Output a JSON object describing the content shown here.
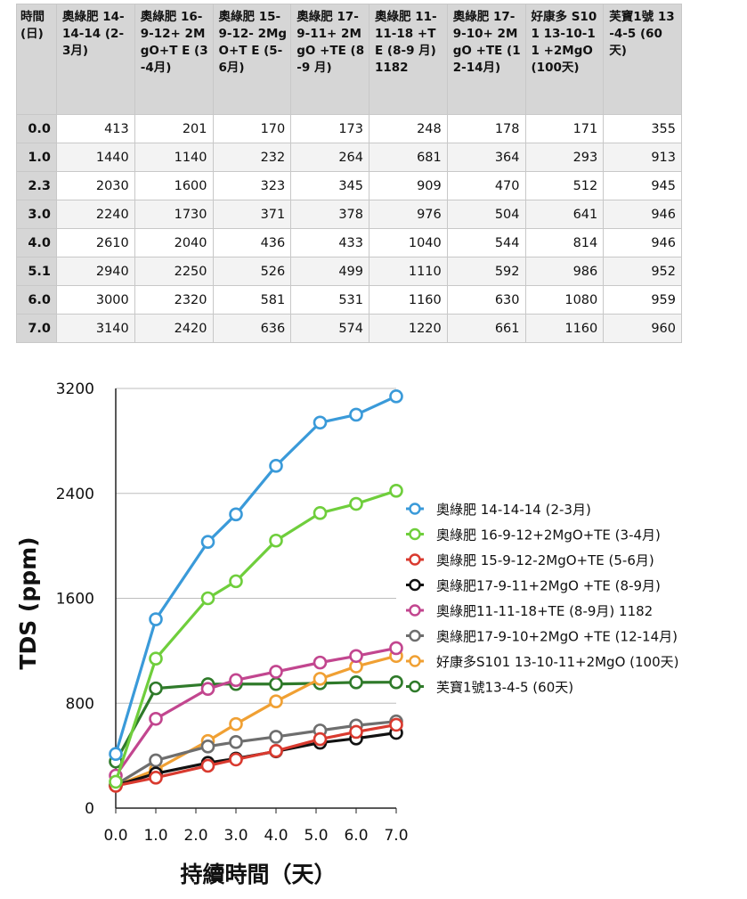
{
  "table": {
    "headers": [
      "時間 (日)",
      "奧綠肥 14-14-14 (2-3月)",
      "奧綠肥 16-9-12+ 2MgO+T E (3-4月)",
      "奧綠肥 15-9-12- 2MgO+T E (5-6月)",
      "奧綠肥 17-9-11+ 2MgO +TE (8-9 月)",
      "奧綠肥 11-11-18 +TE (8-9 月) 1182",
      "奧綠肥 17-9-10+ 2MgO +TE (12-14月)",
      "好康多 S101 13-10-11 +2MgO (100天)",
      "芙寶1號 13-4-5 (60天)"
    ],
    "rows": [
      [
        "0.0",
        "413",
        "201",
        "170",
        "173",
        "248",
        "178",
        "171",
        "355"
      ],
      [
        "1.0",
        "1440",
        "1140",
        "232",
        "264",
        "681",
        "364",
        "293",
        "913"
      ],
      [
        "2.3",
        "2030",
        "1600",
        "323",
        "345",
        "909",
        "470",
        "512",
        "945"
      ],
      [
        "3.0",
        "2240",
        "1730",
        "371",
        "378",
        "976",
        "504",
        "641",
        "946"
      ],
      [
        "4.0",
        "2610",
        "2040",
        "436",
        "433",
        "1040",
        "544",
        "814",
        "946"
      ],
      [
        "5.1",
        "2940",
        "2250",
        "526",
        "499",
        "1110",
        "592",
        "986",
        "952"
      ],
      [
        "6.0",
        "3000",
        "2320",
        "581",
        "531",
        "1160",
        "630",
        "1080",
        "959"
      ],
      [
        "7.0",
        "3140",
        "2420",
        "636",
        "574",
        "1220",
        "661",
        "1160",
        "960"
      ]
    ]
  },
  "chart_data": {
    "type": "line",
    "title": "",
    "xlabel": "持續時間（天）",
    "ylabel": "TDS (ppm)",
    "x": [
      0.0,
      1.0,
      2.3,
      3.0,
      4.0,
      5.1,
      6.0,
      7.0
    ],
    "x_ticks": [
      "0.0",
      "1.0",
      "2.0",
      "3.0",
      "4.0",
      "5.0",
      "6.0",
      "7.0"
    ],
    "y_ticks": [
      "0",
      "800",
      "1600",
      "2400",
      "3200"
    ],
    "xlim": [
      0,
      7
    ],
    "ylim": [
      0,
      3200
    ],
    "grid": "horizontal",
    "legend_position": "right",
    "series": [
      {
        "name": "奧綠肥 14-14-14 (2-3月)",
        "color": "#3a9ad9",
        "values": [
          413,
          1440,
          2030,
          2240,
          2610,
          2940,
          3000,
          3140
        ]
      },
      {
        "name": "奧綠肥 16-9-12+2MgO+TE (3-4月)",
        "color": "#6fce3c",
        "values": [
          201,
          1140,
          1600,
          1730,
          2040,
          2250,
          2320,
          2420
        ]
      },
      {
        "name": "奧綠肥 15-9-12-2MgO+TE (5-6月)",
        "color": "#d93a2f",
        "values": [
          170,
          232,
          323,
          371,
          436,
          526,
          581,
          636
        ]
      },
      {
        "name": "奧綠肥17-9-11+2MgO +TE (8-9月)",
        "color": "#111111",
        "values": [
          173,
          264,
          345,
          378,
          433,
          499,
          531,
          574
        ]
      },
      {
        "name": "奧綠肥11-11-18+TE (8-9月) 1182",
        "color": "#c2468f",
        "values": [
          248,
          681,
          909,
          976,
          1040,
          1110,
          1160,
          1220
        ]
      },
      {
        "name": "奧綠肥17-9-10+2MgO +TE (12-14月)",
        "color": "#6e6e6e",
        "values": [
          178,
          364,
          470,
          504,
          544,
          592,
          630,
          661
        ]
      },
      {
        "name": "好康多S101 13-10-11+2MgO (100天)",
        "color": "#f0a033",
        "values": [
          171,
          293,
          512,
          641,
          814,
          986,
          1080,
          1160
        ]
      },
      {
        "name": "芙寶1號13-4-5 (60天)",
        "color": "#2f7a2a",
        "values": [
          355,
          913,
          945,
          946,
          946,
          952,
          959,
          960
        ]
      }
    ]
  }
}
